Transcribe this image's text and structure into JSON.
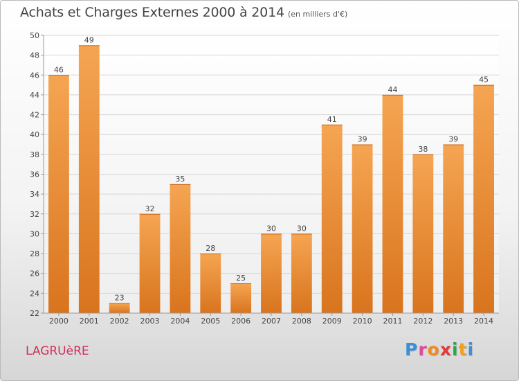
{
  "header": {
    "title": "Achats et Charges Externes 2000 à 2014",
    "unit_note": "(en milliers d'€)"
  },
  "place_name": "LAGRUèRE",
  "logo": {
    "letters": [
      "P",
      "r",
      "o",
      "x",
      "i",
      "t",
      "i"
    ],
    "colors": [
      "#3a8fd6",
      "#e04a9a",
      "#f08a1a",
      "#e23a3a",
      "#2aa64a",
      "#f0a020",
      "#3a8fd6"
    ]
  },
  "chart_data": {
    "type": "bar",
    "title": "Achats et Charges Externes 2000 à 2014",
    "subtitle": "(en milliers d'€)",
    "categories": [
      "2000",
      "2001",
      "2002",
      "2003",
      "2004",
      "2005",
      "2006",
      "2007",
      "2008",
      "2009",
      "2010",
      "2011",
      "2012",
      "2013",
      "2014"
    ],
    "values": [
      46,
      49,
      23,
      32,
      35,
      28,
      25,
      30,
      30,
      41,
      39,
      44,
      38,
      39,
      45
    ],
    "ylim": [
      22,
      50
    ],
    "yticks": [
      22,
      24,
      26,
      28,
      30,
      32,
      34,
      36,
      38,
      40,
      42,
      44,
      46,
      48,
      50
    ],
    "grid": true,
    "bar_color_top": "#f5a552",
    "bar_color_bottom": "#d9741e"
  }
}
